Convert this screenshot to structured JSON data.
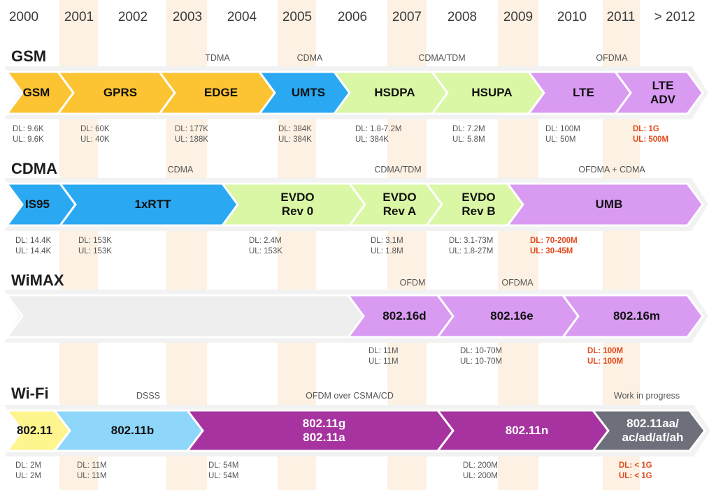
{
  "years": [
    "2000",
    "2001",
    "2002",
    "2003",
    "2004",
    "2005",
    "2006",
    "2007",
    "2008",
    "2009",
    "2010",
    "2011",
    "> 2012"
  ],
  "colors": {
    "yellow": "#fcc332",
    "blue": "#2aa9f2",
    "green": "#d9f7a4",
    "purple": "#d99af2",
    "lightblue": "#8fd6fb",
    "lightyellow": "#fff58f",
    "magenta": "#a6339f",
    "gray": "#6d6f7a",
    "empty": "#eeeeee",
    "highlight": "#e24a1f"
  },
  "rows": [
    {
      "title": "GSM",
      "techs": [
        "TDMA",
        "CDMA",
        "CDMA/TDM",
        "OFDMA"
      ],
      "segments": [
        {
          "label": "GSM",
          "color": "yellow"
        },
        {
          "label": "GPRS",
          "color": "yellow"
        },
        {
          "label": "EDGE",
          "color": "yellow"
        },
        {
          "label": "UMTS",
          "color": "blue"
        },
        {
          "label": "HSDPA",
          "color": "green"
        },
        {
          "label": "HSUPA",
          "color": "green"
        },
        {
          "label": "LTE",
          "color": "purple"
        },
        {
          "label": "LTE\nADV",
          "color": "purple"
        }
      ],
      "rates": [
        {
          "dl": "DL: 9.6K",
          "ul": "UL: 9.6K",
          "hl": false
        },
        {
          "dl": "DL: 60K",
          "ul": "UL: 40K",
          "hl": false
        },
        {
          "dl": "DL: 177K",
          "ul": "UL: 188K",
          "hl": false
        },
        {
          "dl": "DL: 384K",
          "ul": "UL: 384K",
          "hl": false
        },
        {
          "dl": "DL: 1.8-7.2M",
          "ul": "UL: 384K",
          "hl": false
        },
        {
          "dl": "DL: 7.2M",
          "ul": "UL: 5.8M",
          "hl": false
        },
        {
          "dl": "DL: 100M",
          "ul": "UL: 50M",
          "hl": false
        },
        {
          "dl": "DL: 1G",
          "ul": "UL: 500M",
          "hl": true
        }
      ]
    },
    {
      "title": "CDMA",
      "techs": [
        "CDMA",
        "CDMA/TDM",
        "OFDMA + CDMA"
      ],
      "segments": [
        {
          "label": "IS95",
          "color": "blue"
        },
        {
          "label": "1xRTT",
          "color": "blue"
        },
        {
          "label": "EVDO\nRev 0",
          "color": "green"
        },
        {
          "label": "EVDO\nRev A",
          "color": "green"
        },
        {
          "label": "EVDO\nRev B",
          "color": "green"
        },
        {
          "label": "UMB",
          "color": "purple"
        }
      ],
      "rates": [
        {
          "dl": "DL: 14.4K",
          "ul": "UL: 14.4K",
          "hl": false
        },
        {
          "dl": "DL: 153K",
          "ul": "UL: 153K",
          "hl": false
        },
        {
          "dl": "DL: 2.4M",
          "ul": "UL: 153K",
          "hl": false
        },
        {
          "dl": "DL: 3.1M",
          "ul": "UL: 1.8M",
          "hl": false
        },
        {
          "dl": "DL: 3.1-73M",
          "ul": "UL: 1.8-27M",
          "hl": false
        },
        {
          "dl": "DL: 70-200M",
          "ul": "UL: 30-45M",
          "hl": true
        }
      ]
    },
    {
      "title": "WiMAX",
      "techs": [
        "OFDM",
        "OFDMA"
      ],
      "segments": [
        {
          "label": "",
          "color": "empty"
        },
        {
          "label": "802.16d",
          "color": "purple"
        },
        {
          "label": "802.16e",
          "color": "purple"
        },
        {
          "label": "802.16m",
          "color": "purple"
        }
      ],
      "rates": [
        {
          "dl": "DL: 11M",
          "ul": "UL: 11M",
          "hl": false
        },
        {
          "dl": "DL: 10-70M",
          "ul": "UL: 10-70M",
          "hl": false
        },
        {
          "dl": "DL: 100M",
          "ul": "UL: 100M",
          "hl": true
        }
      ]
    },
    {
      "title": "Wi-Fi",
      "techs": [
        "DSSS",
        "OFDM over CSMA/CD",
        "Work in progress"
      ],
      "segments": [
        {
          "label": "802.11",
          "color": "lightyellow"
        },
        {
          "label": "802.11b",
          "color": "lightblue"
        },
        {
          "label": "802.11g\n802.11a",
          "color": "magenta"
        },
        {
          "label": "802.11n",
          "color": "magenta"
        },
        {
          "label": "802.11aa/\nac/ad/af/ah",
          "color": "gray"
        }
      ],
      "rates": [
        {
          "dl": "DL: 2M",
          "ul": "UL: 2M",
          "hl": false
        },
        {
          "dl": "DL: 11M",
          "ul": "UL: 11M",
          "hl": false
        },
        {
          "dl": "DL: 54M",
          "ul": "UL: 54M",
          "hl": false
        },
        {
          "dl": "DL: 200M",
          "ul": "UL: 200M",
          "hl": false
        },
        {
          "dl": "DL: < 1G",
          "ul": "UL: < 1G",
          "hl": true
        }
      ]
    }
  ]
}
